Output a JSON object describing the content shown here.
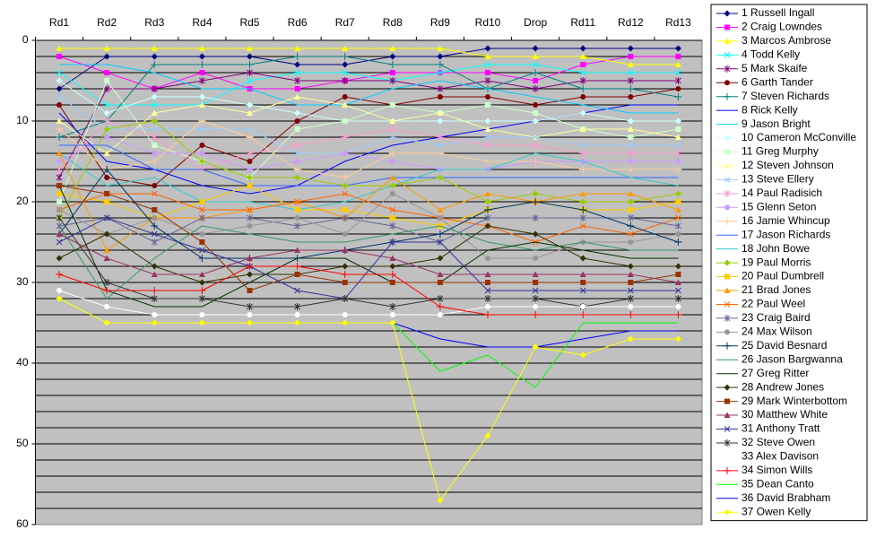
{
  "chart_data": {
    "type": "line",
    "categories": [
      "Rd1",
      "Rd2",
      "Rd3",
      "Rd4",
      "Rd5",
      "Rd6",
      "Rd7",
      "Rd8",
      "Rd9",
      "Rd10",
      "Drop",
      "Rd11",
      "Rd12",
      "Rd13"
    ],
    "ylim": [
      0,
      60
    ],
    "yticks": [
      0,
      10,
      20,
      30,
      40,
      50,
      60
    ],
    "y_reversed": true,
    "ygrid": [
      2,
      4,
      6,
      8,
      10,
      12,
      14,
      16,
      18,
      20,
      22,
      24,
      26,
      28,
      30,
      32,
      34,
      36,
      38,
      40,
      42,
      44,
      46,
      48,
      50,
      52,
      54,
      56,
      58
    ],
    "background": "#c0c0c0",
    "legend": "right",
    "series": [
      {
        "name": "1 Russell Ingall",
        "color": "#000080",
        "marker": "diamond",
        "values": [
          6,
          2,
          2,
          2,
          2,
          3,
          3,
          2,
          2,
          1,
          1,
          1,
          1,
          1
        ]
      },
      {
        "name": "2 Craig Lowndes",
        "color": "#ff00ff",
        "marker": "square",
        "values": [
          2,
          4,
          6,
          4,
          6,
          6,
          5,
          4,
          4,
          4,
          5,
          3,
          2,
          2
        ]
      },
      {
        "name": "3 Marcos Ambrose",
        "color": "#ffff00",
        "marker": "triangle",
        "values": [
          1,
          1,
          1,
          1,
          1,
          1,
          1,
          1,
          1,
          2,
          2,
          2,
          3,
          3
        ]
      },
      {
        "name": "4 Todd Kelly",
        "color": "#00ffff",
        "marker": "x",
        "values": [
          4,
          8,
          8,
          8,
          5,
          4,
          4,
          5,
          4,
          3,
          3,
          4,
          4,
          4
        ]
      },
      {
        "name": "5 Mark Skaife",
        "color": "#800080",
        "marker": "star",
        "values": [
          17,
          6,
          6,
          5,
          4,
          5,
          5,
          5,
          6,
          5,
          6,
          5,
          5,
          5
        ]
      },
      {
        "name": "6 Garth Tander",
        "color": "#800000",
        "marker": "circle",
        "values": [
          8,
          17,
          18,
          13,
          15,
          10,
          7,
          8,
          7,
          7,
          8,
          7,
          7,
          6
        ]
      },
      {
        "name": "7 Steven Richards",
        "color": "#008080",
        "marker": "plus",
        "values": [
          12,
          10,
          3,
          3,
          3,
          2,
          2,
          3,
          3,
          6,
          4,
          6,
          6,
          7
        ]
      },
      {
        "name": "8 Rick Kelly",
        "color": "#0000ff",
        "marker": "none",
        "values": [
          9,
          15,
          16,
          18,
          19,
          18,
          15,
          13,
          12,
          11,
          10,
          9,
          8,
          8
        ]
      },
      {
        "name": "9 Jason Bright",
        "color": "#00ccff",
        "marker": "none",
        "values": [
          3,
          3,
          4,
          6,
          6,
          8,
          8,
          6,
          5,
          6,
          7,
          8,
          9,
          9
        ]
      },
      {
        "name": "10 Cameron McConville",
        "color": "#ccffff",
        "marker": "diamond",
        "values": [
          5,
          9,
          7,
          7,
          8,
          9,
          10,
          10,
          10,
          10,
          10,
          9,
          10,
          10
        ]
      },
      {
        "name": "11 Greg Murphy",
        "color": "#ccffcc",
        "marker": "square",
        "values": [
          20,
          5,
          13,
          15,
          17,
          11,
          10,
          8,
          9,
          8,
          9,
          11,
          12,
          11
        ]
      },
      {
        "name": "12 Steven Johnson",
        "color": "#ffff99",
        "marker": "triangle",
        "values": [
          10,
          14,
          9,
          8,
          9,
          7,
          8,
          10,
          9,
          11,
          12,
          11,
          11,
          12
        ]
      },
      {
        "name": "13 Steve Ellery",
        "color": "#99ccff",
        "marker": "x",
        "values": [
          7,
          11,
          11,
          11,
          11,
          14,
          14,
          12,
          13,
          12,
          12,
          13,
          13,
          13
        ]
      },
      {
        "name": "14 Paul Radisich",
        "color": "#ff99cc",
        "marker": "star",
        "values": [
          16,
          10,
          12,
          16,
          14,
          13,
          12,
          11,
          12,
          13,
          13,
          14,
          14,
          14
        ]
      },
      {
        "name": "15 Glenn Seton",
        "color": "#cc99ff",
        "marker": "circle",
        "values": [
          15,
          12,
          14,
          14,
          16,
          15,
          14,
          15,
          16,
          16,
          15,
          15,
          15,
          15
        ]
      },
      {
        "name": "16 Jamie Whincup",
        "color": "#ffcc99",
        "marker": "plus",
        "values": [
          11,
          16,
          15,
          10,
          12,
          16,
          17,
          14,
          14,
          15,
          15,
          16,
          16,
          16
        ]
      },
      {
        "name": "17 Jason Richards",
        "color": "#3366ff",
        "marker": "none",
        "values": [
          13,
          13,
          16,
          16,
          18,
          18,
          18,
          17,
          17,
          17,
          17,
          17,
          17,
          17
        ]
      },
      {
        "name": "18 John Bowe",
        "color": "#33cccc",
        "marker": "none",
        "values": [
          14,
          18,
          17,
          20,
          20,
          21,
          20,
          18,
          16,
          16,
          14,
          15,
          17,
          18
        ]
      },
      {
        "name": "19 Paul Morris",
        "color": "#99cc00",
        "marker": "diamond",
        "values": [
          22,
          11,
          10,
          15,
          17,
          17,
          18,
          18,
          17,
          20,
          19,
          20,
          20,
          19
        ]
      },
      {
        "name": "20 Paul Dumbrell",
        "color": "#ffcc00",
        "marker": "square",
        "values": [
          19,
          20,
          22,
          20,
          18,
          21,
          21,
          22,
          23,
          21,
          20,
          21,
          21,
          20
        ]
      },
      {
        "name": "21 Brad Jones",
        "color": "#ff9900",
        "marker": "triangle",
        "values": [
          14,
          26,
          22,
          22,
          21,
          20,
          22,
          17,
          21,
          19,
          20,
          19,
          19,
          21
        ]
      },
      {
        "name": "22 Paul Weel",
        "color": "#ff6600",
        "marker": "x",
        "values": [
          21,
          19,
          19,
          21,
          21,
          20,
          19,
          21,
          22,
          23,
          25,
          23,
          24,
          22
        ]
      },
      {
        "name": "23 Craig Baird",
        "color": "#666699",
        "marker": "star",
        "values": [
          23,
          22,
          25,
          22,
          22,
          23,
          22,
          23,
          25,
          22,
          22,
          22,
          22,
          23
        ]
      },
      {
        "name": "24 Max Wilson",
        "color": "#969696",
        "marker": "circle",
        "values": [
          21,
          24,
          22,
          24,
          23,
          22,
          24,
          19,
          22,
          27,
          27,
          25,
          25,
          24
        ]
      },
      {
        "name": "25 David Besnard",
        "color": "#003366",
        "marker": "plus",
        "values": [
          24,
          16,
          23,
          27,
          27,
          27,
          26,
          25,
          24,
          21,
          20,
          21,
          23,
          25
        ]
      },
      {
        "name": "26 Jason Bargwanna",
        "color": "#339966",
        "marker": "none",
        "values": [
          23,
          32,
          27,
          23,
          24,
          25,
          25,
          24,
          23,
          25,
          26,
          25,
          26,
          26
        ]
      },
      {
        "name": "27 Greg Ritter",
        "color": "#003300",
        "marker": "none",
        "values": [
          18,
          31,
          33,
          33,
          30,
          27,
          27,
          30,
          30,
          26,
          25,
          26,
          27,
          27
        ]
      },
      {
        "name": "28 Andrew Jones",
        "color": "#333300",
        "marker": "diamond",
        "values": [
          27,
          24,
          28,
          30,
          29,
          29,
          28,
          28,
          27,
          23,
          24,
          27,
          28,
          28
        ]
      },
      {
        "name": "29 Mark Winterbottom",
        "color": "#993300",
        "marker": "square",
        "values": [
          18,
          19,
          21,
          25,
          31,
          29,
          30,
          30,
          30,
          30,
          30,
          30,
          30,
          29
        ]
      },
      {
        "name": "30 Matthew White",
        "color": "#993366",
        "marker": "triangle",
        "values": [
          24,
          27,
          29,
          29,
          27,
          26,
          26,
          27,
          29,
          29,
          29,
          29,
          29,
          30
        ]
      },
      {
        "name": "31 Anthony Tratt",
        "color": "#333399",
        "marker": "x",
        "values": [
          25,
          22,
          24,
          26,
          28,
          31,
          32,
          25,
          25,
          31,
          31,
          31,
          31,
          31
        ]
      },
      {
        "name": "32 Steve Owen",
        "color": "#333333",
        "marker": "star",
        "values": [
          22,
          30,
          32,
          32,
          33,
          33,
          32,
          33,
          32,
          32,
          32,
          33,
          32,
          32
        ]
      },
      {
        "name": "33 Alex Davison",
        "color": "#ffffff",
        "marker": "circle",
        "values": [
          31,
          33,
          34,
          34,
          34,
          34,
          34,
          34,
          34,
          33,
          33,
          33,
          33,
          33
        ]
      },
      {
        "name": "34 Simon Wills",
        "color": "#ff0000",
        "marker": "plus",
        "values": [
          29,
          31,
          31,
          31,
          28,
          28,
          29,
          29,
          33,
          34,
          34,
          34,
          34,
          34
        ]
      },
      {
        "name": "35 Dean Canto",
        "color": "#00ff00",
        "marker": "none",
        "values": [
          null,
          null,
          null,
          null,
          null,
          null,
          null,
          35,
          41,
          39,
          43,
          35,
          35,
          35
        ]
      },
      {
        "name": "36 David Brabham",
        "color": "#0000ff",
        "marker": "none",
        "values": [
          null,
          null,
          null,
          null,
          null,
          null,
          null,
          35,
          37,
          38,
          38,
          37,
          36,
          36
        ]
      },
      {
        "name": "37 Owen Kelly",
        "color": "#ffff00",
        "marker": "diamond",
        "values": [
          32,
          35,
          35,
          35,
          35,
          35,
          35,
          35,
          57,
          49,
          38,
          39,
          37,
          37
        ]
      }
    ]
  }
}
